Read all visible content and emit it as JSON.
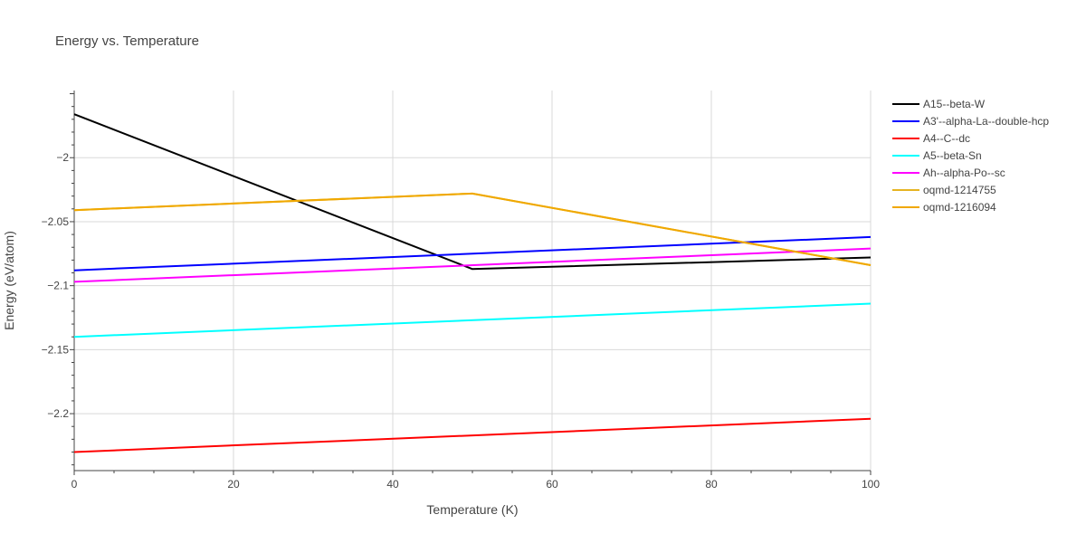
{
  "chart_data": {
    "type": "line",
    "title": "Energy vs. Temperature",
    "xlabel": "Temperature (K)",
    "ylabel": "Energy (eV/atom)",
    "xlim": [
      0,
      100
    ],
    "ylim": [
      -2.2445,
      -1.9475
    ],
    "xticks": [
      0,
      20,
      40,
      60,
      80,
      100
    ],
    "xtick_labels": [
      "0",
      "20",
      "40",
      "60",
      "80",
      "100"
    ],
    "yticks": [
      -2.2,
      -2.15,
      -2.1,
      -2.05,
      -2.0
    ],
    "ytick_labels": [
      "−2.2",
      "−2.15",
      "−2.1",
      "−2.05",
      "−2"
    ],
    "grid": true,
    "legend_position": "right",
    "series": [
      {
        "name": "A15--beta-W",
        "color": "#000000",
        "x": [
          0,
          50,
          100
        ],
        "y": [
          -1.966,
          -2.087,
          -2.078
        ]
      },
      {
        "name": "A3'--alpha-La--double-hcp",
        "color": "#0000ff",
        "x": [
          0,
          100
        ],
        "y": [
          -2.088,
          -2.062
        ]
      },
      {
        "name": "A4--C--dc",
        "color": "#ff0000",
        "x": [
          0,
          100
        ],
        "y": [
          -2.23,
          -2.204
        ]
      },
      {
        "name": "A5--beta-Sn",
        "color": "#00ffff",
        "x": [
          0,
          100
        ],
        "y": [
          -2.14,
          -2.114
        ]
      },
      {
        "name": "Ah--alpha-Po--sc",
        "color": "#ff00ff",
        "x": [
          0,
          100
        ],
        "y": [
          -2.097,
          -2.071
        ]
      },
      {
        "name": "oqmd-1214755",
        "color": "#e6b422",
        "x": [
          0,
          50,
          100
        ],
        "y": [
          -2.041,
          -2.028,
          -2.084
        ]
      },
      {
        "name": "oqmd-1216094",
        "color": "#f0a800",
        "x": [
          0,
          50,
          100
        ],
        "y": [
          -2.041,
          -2.028,
          -2.084
        ]
      }
    ]
  }
}
